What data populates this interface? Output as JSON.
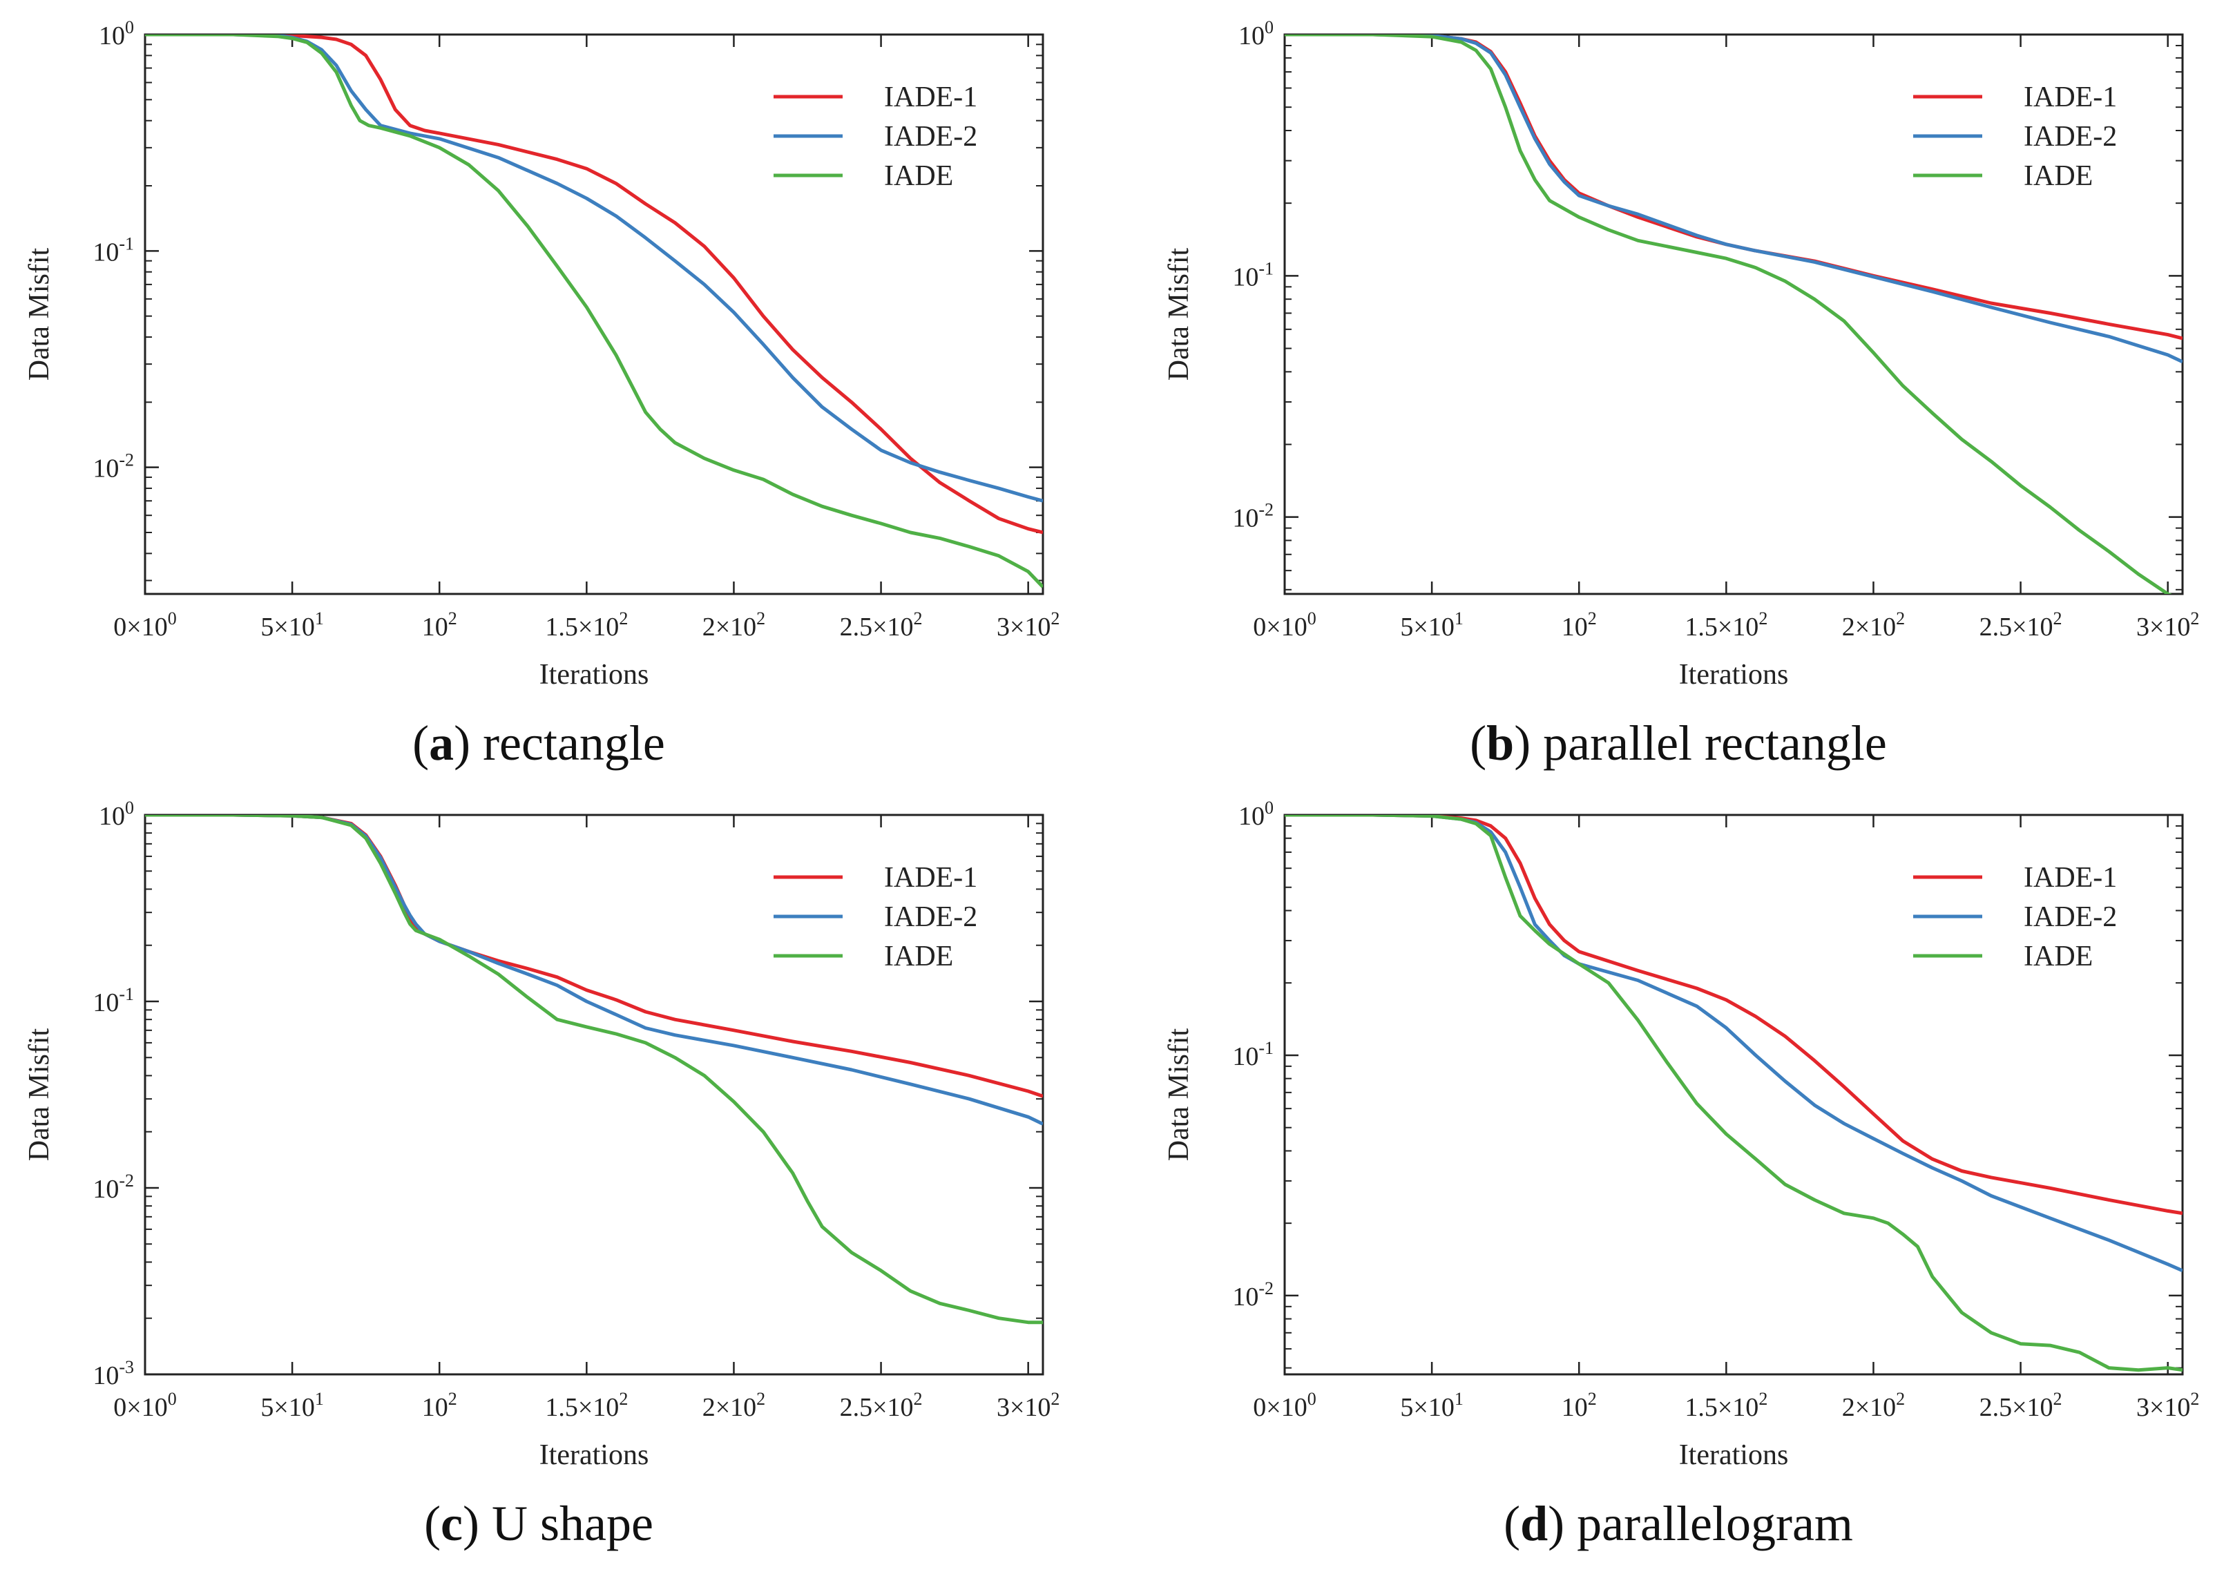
{
  "figure": {
    "panels": [
      {
        "caption_letter": "a",
        "caption_text": "rectangle"
      },
      {
        "caption_letter": "b",
        "caption_text": "parallel rectangle"
      },
      {
        "caption_letter": "c",
        "caption_text": "U shape"
      },
      {
        "caption_letter": "d",
        "caption_text": "parallelogram"
      }
    ]
  },
  "chart_data": [
    {
      "type": "line",
      "xlabel": "Iterations",
      "ylabel": "Data Misfit",
      "yscale": "log",
      "xlim": [
        0,
        305
      ],
      "ylim": [
        0.0026,
        1.0
      ],
      "grid": false,
      "legend_position": "top-right",
      "x_ticks": [
        {
          "v": 0,
          "base": "0×10",
          "exp": "0"
        },
        {
          "v": 50,
          "base": "5×10",
          "exp": "1"
        },
        {
          "v": 100,
          "base": "10",
          "exp": "2"
        },
        {
          "v": 150,
          "base": "1.5×10",
          "exp": "2"
        },
        {
          "v": 200,
          "base": "2×10",
          "exp": "2"
        },
        {
          "v": 250,
          "base": "2.5×10",
          "exp": "2"
        },
        {
          "v": 300,
          "base": "3×10",
          "exp": "2"
        }
      ],
      "y_ticks": [
        {
          "v": 1,
          "base": "10",
          "exp": "0"
        },
        {
          "v": 0.1,
          "base": "10",
          "exp": "-1"
        },
        {
          "v": 0.01,
          "base": "10",
          "exp": "-2"
        }
      ],
      "series": [
        {
          "name": "IADE-1",
          "color": "#e3262b",
          "x": [
            0,
            30,
            50,
            60,
            65,
            70,
            75,
            80,
            85,
            90,
            95,
            100,
            120,
            140,
            150,
            160,
            170,
            180,
            190,
            200,
            210,
            220,
            230,
            240,
            250,
            260,
            270,
            280,
            290,
            300,
            305
          ],
          "y": [
            1.0,
            1.0,
            0.99,
            0.97,
            0.95,
            0.9,
            0.8,
            0.62,
            0.45,
            0.38,
            0.36,
            0.35,
            0.31,
            0.265,
            0.24,
            0.205,
            0.165,
            0.135,
            0.105,
            0.075,
            0.05,
            0.035,
            0.026,
            0.02,
            0.015,
            0.011,
            0.0085,
            0.007,
            0.0058,
            0.0052,
            0.005
          ]
        },
        {
          "name": "IADE-2",
          "color": "#3d7fbf",
          "x": [
            0,
            30,
            45,
            50,
            55,
            60,
            65,
            70,
            75,
            80,
            90,
            100,
            120,
            140,
            150,
            160,
            170,
            180,
            190,
            200,
            210,
            220,
            230,
            240,
            250,
            260,
            270,
            280,
            290,
            300,
            305
          ],
          "y": [
            1.0,
            1.0,
            0.99,
            0.97,
            0.93,
            0.85,
            0.72,
            0.55,
            0.45,
            0.38,
            0.35,
            0.33,
            0.27,
            0.205,
            0.175,
            0.145,
            0.115,
            0.09,
            0.07,
            0.052,
            0.037,
            0.026,
            0.019,
            0.015,
            0.012,
            0.0105,
            0.0095,
            0.0087,
            0.008,
            0.0073,
            0.007
          ]
        },
        {
          "name": "IADE",
          "color": "#4fb046",
          "x": [
            0,
            30,
            45,
            50,
            55,
            60,
            65,
            70,
            73,
            76,
            80,
            90,
            100,
            110,
            120,
            130,
            140,
            150,
            160,
            170,
            175,
            180,
            190,
            200,
            210,
            220,
            230,
            240,
            250,
            260,
            270,
            280,
            290,
            300,
            305
          ],
          "y": [
            1.0,
            1.0,
            0.98,
            0.96,
            0.92,
            0.82,
            0.67,
            0.47,
            0.4,
            0.38,
            0.37,
            0.34,
            0.3,
            0.25,
            0.19,
            0.13,
            0.085,
            0.055,
            0.033,
            0.018,
            0.015,
            0.013,
            0.011,
            0.0097,
            0.0088,
            0.0075,
            0.0066,
            0.006,
            0.0055,
            0.005,
            0.0047,
            0.0043,
            0.0039,
            0.0033,
            0.0028
          ]
        }
      ]
    },
    {
      "type": "line",
      "xlabel": "Iterations",
      "ylabel": "Data Misfit",
      "yscale": "log",
      "xlim": [
        0,
        305
      ],
      "ylim": [
        0.0048,
        1.0
      ],
      "grid": false,
      "legend_position": "top-right",
      "x_ticks": [
        {
          "v": 0,
          "base": "0×10",
          "exp": "0"
        },
        {
          "v": 50,
          "base": "5×10",
          "exp": "1"
        },
        {
          "v": 100,
          "base": "10",
          "exp": "2"
        },
        {
          "v": 150,
          "base": "1.5×10",
          "exp": "2"
        },
        {
          "v": 200,
          "base": "2×10",
          "exp": "2"
        },
        {
          "v": 250,
          "base": "2.5×10",
          "exp": "2"
        },
        {
          "v": 300,
          "base": "3×10",
          "exp": "2"
        }
      ],
      "y_ticks": [
        {
          "v": 1,
          "base": "10",
          "exp": "0"
        },
        {
          "v": 0.1,
          "base": "10",
          "exp": "-1"
        },
        {
          "v": 0.01,
          "base": "10",
          "exp": "-2"
        }
      ],
      "series": [
        {
          "name": "IADE-1",
          "color": "#e3262b",
          "x": [
            0,
            30,
            50,
            60,
            65,
            70,
            75,
            80,
            85,
            90,
            95,
            100,
            110,
            120,
            140,
            150,
            160,
            180,
            200,
            220,
            240,
            260,
            280,
            300,
            305
          ],
          "y": [
            1.0,
            1.0,
            0.99,
            0.96,
            0.93,
            0.85,
            0.7,
            0.52,
            0.38,
            0.3,
            0.25,
            0.22,
            0.195,
            0.175,
            0.145,
            0.135,
            0.127,
            0.115,
            0.1,
            0.088,
            0.077,
            0.07,
            0.063,
            0.057,
            0.055
          ]
        },
        {
          "name": "IADE-2",
          "color": "#3d7fbf",
          "x": [
            0,
            30,
            50,
            60,
            65,
            70,
            75,
            80,
            85,
            90,
            95,
            100,
            110,
            120,
            140,
            150,
            160,
            180,
            200,
            220,
            240,
            260,
            280,
            300,
            305
          ],
          "y": [
            1.0,
            1.0,
            0.99,
            0.96,
            0.92,
            0.84,
            0.68,
            0.5,
            0.37,
            0.29,
            0.245,
            0.215,
            0.195,
            0.18,
            0.147,
            0.135,
            0.127,
            0.114,
            0.099,
            0.086,
            0.074,
            0.064,
            0.056,
            0.047,
            0.044
          ]
        },
        {
          "name": "IADE",
          "color": "#4fb046",
          "x": [
            0,
            30,
            50,
            60,
            65,
            70,
            75,
            80,
            85,
            90,
            100,
            110,
            120,
            140,
            150,
            160,
            170,
            180,
            190,
            200,
            210,
            220,
            230,
            240,
            250,
            260,
            270,
            280,
            290,
            300,
            305
          ],
          "y": [
            1.0,
            1.0,
            0.98,
            0.93,
            0.86,
            0.72,
            0.5,
            0.33,
            0.25,
            0.205,
            0.175,
            0.155,
            0.14,
            0.125,
            0.118,
            0.108,
            0.095,
            0.08,
            0.065,
            0.048,
            0.035,
            0.027,
            0.021,
            0.017,
            0.0135,
            0.011,
            0.0088,
            0.0072,
            0.0058,
            0.0048,
            0.0045
          ]
        }
      ]
    },
    {
      "type": "line",
      "xlabel": "Iterations",
      "ylabel": "Data Misfit",
      "yscale": "log",
      "xlim": [
        0,
        305
      ],
      "ylim": [
        0.001,
        1.0
      ],
      "grid": false,
      "legend_position": "top-right",
      "x_ticks": [
        {
          "v": 0,
          "base": "0×10",
          "exp": "0"
        },
        {
          "v": 50,
          "base": "5×10",
          "exp": "1"
        },
        {
          "v": 100,
          "base": "10",
          "exp": "2"
        },
        {
          "v": 150,
          "base": "1.5×10",
          "exp": "2"
        },
        {
          "v": 200,
          "base": "2×10",
          "exp": "2"
        },
        {
          "v": 250,
          "base": "2.5×10",
          "exp": "2"
        },
        {
          "v": 300,
          "base": "3×10",
          "exp": "2"
        }
      ],
      "y_ticks": [
        {
          "v": 1,
          "base": "10",
          "exp": "0"
        },
        {
          "v": 0.1,
          "base": "10",
          "exp": "-1"
        },
        {
          "v": 0.01,
          "base": "10",
          "exp": "-2"
        },
        {
          "v": 0.001,
          "base": "10",
          "exp": "-3"
        }
      ],
      "series": [
        {
          "name": "IADE-1",
          "color": "#e3262b",
          "x": [
            0,
            30,
            50,
            60,
            70,
            75,
            80,
            85,
            88,
            90,
            92,
            95,
            100,
            110,
            120,
            130,
            140,
            150,
            160,
            170,
            180,
            200,
            220,
            240,
            260,
            280,
            300,
            305
          ],
          "y": [
            1.0,
            1.0,
            0.99,
            0.97,
            0.9,
            0.78,
            0.6,
            0.42,
            0.33,
            0.28,
            0.25,
            0.23,
            0.21,
            0.185,
            0.165,
            0.15,
            0.135,
            0.115,
            0.102,
            0.088,
            0.08,
            0.07,
            0.061,
            0.054,
            0.047,
            0.04,
            0.033,
            0.031
          ]
        },
        {
          "name": "IADE-2",
          "color": "#3d7fbf",
          "x": [
            0,
            30,
            50,
            60,
            70,
            75,
            80,
            85,
            88,
            90,
            92,
            95,
            100,
            110,
            120,
            130,
            140,
            150,
            160,
            170,
            180,
            200,
            220,
            240,
            260,
            280,
            300,
            305
          ],
          "y": [
            1.0,
            1.0,
            0.99,
            0.97,
            0.89,
            0.77,
            0.59,
            0.41,
            0.33,
            0.29,
            0.26,
            0.23,
            0.21,
            0.185,
            0.16,
            0.14,
            0.122,
            0.1,
            0.085,
            0.072,
            0.066,
            0.058,
            0.05,
            0.043,
            0.036,
            0.03,
            0.024,
            0.022
          ]
        },
        {
          "name": "IADE",
          "color": "#4fb046",
          "x": [
            0,
            30,
            50,
            60,
            70,
            75,
            80,
            85,
            88,
            90,
            92,
            95,
            100,
            110,
            120,
            130,
            140,
            150,
            160,
            170,
            180,
            190,
            200,
            210,
            220,
            225,
            230,
            240,
            250,
            260,
            270,
            280,
            290,
            300,
            305
          ],
          "y": [
            1.0,
            1.0,
            0.99,
            0.97,
            0.88,
            0.75,
            0.55,
            0.38,
            0.3,
            0.26,
            0.24,
            0.23,
            0.215,
            0.175,
            0.14,
            0.105,
            0.08,
            0.073,
            0.067,
            0.06,
            0.05,
            0.04,
            0.029,
            0.02,
            0.012,
            0.0085,
            0.0062,
            0.0045,
            0.0036,
            0.0028,
            0.0024,
            0.0022,
            0.002,
            0.0019,
            0.0019
          ]
        }
      ]
    },
    {
      "type": "line",
      "xlabel": "Iterations",
      "ylabel": "Data Misfit",
      "yscale": "log",
      "xlim": [
        0,
        305
      ],
      "ylim": [
        0.0047,
        1.0
      ],
      "grid": false,
      "legend_position": "top-right",
      "x_ticks": [
        {
          "v": 0,
          "base": "0×10",
          "exp": "0"
        },
        {
          "v": 50,
          "base": "5×10",
          "exp": "1"
        },
        {
          "v": 100,
          "base": "10",
          "exp": "2"
        },
        {
          "v": 150,
          "base": "1.5×10",
          "exp": "2"
        },
        {
          "v": 200,
          "base": "2×10",
          "exp": "2"
        },
        {
          "v": 250,
          "base": "2.5×10",
          "exp": "2"
        },
        {
          "v": 300,
          "base": "3×10",
          "exp": "2"
        }
      ],
      "y_ticks": [
        {
          "v": 1,
          "base": "10",
          "exp": "0"
        },
        {
          "v": 0.1,
          "base": "10",
          "exp": "-1"
        },
        {
          "v": 0.01,
          "base": "10",
          "exp": "-2"
        }
      ],
      "series": [
        {
          "name": "IADE-1",
          "color": "#e3262b",
          "x": [
            0,
            30,
            50,
            60,
            65,
            70,
            75,
            80,
            85,
            90,
            95,
            100,
            120,
            140,
            150,
            160,
            170,
            180,
            190,
            200,
            210,
            220,
            230,
            240,
            260,
            280,
            300,
            305
          ],
          "y": [
            1.0,
            1.0,
            0.99,
            0.97,
            0.95,
            0.9,
            0.8,
            0.63,
            0.45,
            0.35,
            0.3,
            0.27,
            0.225,
            0.19,
            0.17,
            0.145,
            0.12,
            0.095,
            0.074,
            0.057,
            0.044,
            0.037,
            0.033,
            0.031,
            0.028,
            0.025,
            0.0225,
            0.022
          ]
        },
        {
          "name": "IADE-2",
          "color": "#3d7fbf",
          "x": [
            0,
            30,
            50,
            60,
            65,
            70,
            75,
            80,
            85,
            90,
            95,
            100,
            120,
            140,
            150,
            160,
            170,
            180,
            190,
            200,
            210,
            220,
            230,
            240,
            260,
            280,
            300,
            305
          ],
          "y": [
            1.0,
            1.0,
            0.99,
            0.96,
            0.93,
            0.85,
            0.7,
            0.5,
            0.35,
            0.3,
            0.26,
            0.24,
            0.205,
            0.16,
            0.13,
            0.1,
            0.078,
            0.062,
            0.052,
            0.045,
            0.039,
            0.034,
            0.03,
            0.026,
            0.021,
            0.017,
            0.0135,
            0.0127
          ]
        },
        {
          "name": "IADE",
          "color": "#4fb046",
          "x": [
            0,
            30,
            50,
            60,
            65,
            70,
            75,
            80,
            85,
            90,
            100,
            110,
            120,
            130,
            140,
            150,
            160,
            170,
            180,
            190,
            200,
            205,
            210,
            215,
            220,
            230,
            240,
            250,
            260,
            270,
            280,
            290,
            300,
            305
          ],
          "y": [
            1.0,
            1.0,
            0.99,
            0.96,
            0.92,
            0.82,
            0.55,
            0.38,
            0.33,
            0.29,
            0.24,
            0.2,
            0.14,
            0.093,
            0.063,
            0.047,
            0.037,
            0.029,
            0.025,
            0.022,
            0.021,
            0.02,
            0.018,
            0.016,
            0.012,
            0.0085,
            0.007,
            0.0063,
            0.0062,
            0.0058,
            0.005,
            0.0049,
            0.005,
            0.0049
          ]
        }
      ]
    }
  ]
}
